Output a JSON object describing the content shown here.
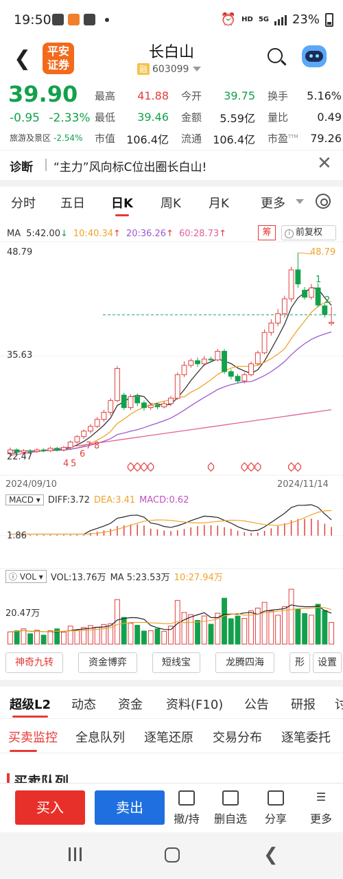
{
  "status_bar": {
    "time": "19:50",
    "hd": "HD",
    "net": "5G",
    "battery": "23%"
  },
  "header": {
    "title": "长白山",
    "rong": "融",
    "code": "603099",
    "logo_line1": "平安",
    "logo_line2": "证券"
  },
  "quote": {
    "price": "39.90",
    "change": "-0.95",
    "change_pct": "-2.33%",
    "sector_label": "旅游及景区",
    "sector_change": "-2.54%",
    "rows": [
      {
        "l1": "最高",
        "v1": "41.88",
        "l2": "今开",
        "v2": "39.75",
        "l3": "换手",
        "v3": "5.16%"
      },
      {
        "l1": "最低",
        "v1": "39.46",
        "l2": "金额",
        "v2": "5.59亿",
        "l3": "量比",
        "v3": "0.49"
      },
      {
        "l1": "市值",
        "v1": "106.4亿",
        "l2": "流通",
        "v2": "106.4亿",
        "l3": "市盈",
        "v3": "79.26",
        "ttm": "TTM"
      }
    ]
  },
  "diagnosis": {
    "label": "诊断",
    "text": "“主力”风向标C位出圈长白山!"
  },
  "kline_tabs": [
    "分时",
    "五日",
    "日K",
    "周K",
    "月K",
    "更多"
  ],
  "ma": {
    "label": "MA",
    "ma5": "5:42.00",
    "ma10": "10:40.34",
    "ma20": "20:36.26",
    "ma60": "60:28.73",
    "chou": "筹",
    "adjust": "前复权"
  },
  "chart_labels": {
    "high": "48.79",
    "mid": "35.63",
    "low": "22.47",
    "max_mark": "48.79",
    "date_start": "2024/09/10",
    "date_end": "2024/11/14",
    "marks": [
      "1",
      "2",
      "7",
      "8",
      "6",
      "4",
      "5"
    ]
  },
  "macd": {
    "name": "MACD",
    "diff": "DIFF:3.72",
    "dea": "DEA:3.41",
    "macd": "MACD:0.62",
    "axis": "1.86"
  },
  "vol": {
    "name": "VOL",
    "vol": "VOL:13.76万",
    "ma5": "MA 5:23.53万",
    "ma10": "10:27.94万",
    "axis": "20.47万"
  },
  "colors": {
    "up": "#e33c3c",
    "down": "#12a14b",
    "ma5": "#333333",
    "ma10": "#f0a32a",
    "ma20": "#9b59d0",
    "ma60": "#e0609a"
  },
  "tools": [
    "神奇九转",
    "资金博弈",
    "短线宝",
    "龙腾四海",
    "形",
    "设置"
  ],
  "lower_tabs": [
    "超级L2",
    "动态",
    "资金",
    "资料(F10)",
    "公告",
    "研报",
    "讨"
  ],
  "sub_tabs": [
    "买卖监控",
    "全息队列",
    "逐笔还原",
    "交易分布",
    "逐笔委托"
  ],
  "section_title": "买卖队列",
  "bottom": {
    "buy": "买入",
    "sell": "卖出",
    "b1": "撤/持",
    "b2": "删自选",
    "b3": "分享",
    "b4": "更多"
  },
  "chart_data": {
    "type": "candlestick",
    "title": "",
    "x_range": [
      "2024/09/10",
      "2024/11/14"
    ],
    "ylim": [
      22.47,
      48.79
    ],
    "y_ticks": [
      22.47,
      35.63,
      48.79
    ],
    "candles": [
      {
        "o": 23.1,
        "c": 23.6,
        "h": 23.9,
        "l": 22.8
      },
      {
        "o": 23.6,
        "c": 23.3,
        "h": 23.8,
        "l": 23.0
      },
      {
        "o": 23.3,
        "c": 23.5,
        "h": 23.7,
        "l": 23.0
      },
      {
        "o": 23.5,
        "c": 23.4,
        "h": 23.7,
        "l": 23.1
      },
      {
        "o": 23.4,
        "c": 23.6,
        "h": 23.8,
        "l": 23.2
      },
      {
        "o": 23.6,
        "c": 23.5,
        "h": 23.8,
        "l": 23.3
      },
      {
        "o": 23.5,
        "c": 23.8,
        "h": 24.0,
        "l": 23.3
      },
      {
        "o": 23.8,
        "c": 23.6,
        "h": 24.0,
        "l": 23.4
      },
      {
        "o": 23.6,
        "c": 23.9,
        "h": 24.1,
        "l": 23.4
      },
      {
        "o": 23.9,
        "c": 24.6,
        "h": 24.8,
        "l": 23.7
      },
      {
        "o": 24.6,
        "c": 25.3,
        "h": 25.5,
        "l": 24.4
      },
      {
        "o": 25.3,
        "c": 26.0,
        "h": 26.2,
        "l": 25.0
      },
      {
        "o": 26.0,
        "c": 26.6,
        "h": 26.9,
        "l": 25.7
      },
      {
        "o": 26.6,
        "c": 27.5,
        "h": 27.8,
        "l": 26.4
      },
      {
        "o": 27.5,
        "c": 28.4,
        "h": 28.7,
        "l": 27.2
      },
      {
        "o": 28.4,
        "c": 29.9,
        "h": 30.2,
        "l": 28.0
      },
      {
        "o": 29.9,
        "c": 34.0,
        "h": 34.3,
        "l": 29.7
      },
      {
        "o": 30.6,
        "c": 29.0,
        "h": 30.9,
        "l": 28.7
      },
      {
        "o": 29.0,
        "c": 30.4,
        "h": 30.7,
        "l": 28.7
      },
      {
        "o": 30.4,
        "c": 29.6,
        "h": 30.8,
        "l": 29.2
      },
      {
        "o": 29.6,
        "c": 29.0,
        "h": 29.9,
        "l": 28.6
      },
      {
        "o": 29.0,
        "c": 29.3,
        "h": 29.6,
        "l": 28.7
      },
      {
        "o": 29.3,
        "c": 29.1,
        "h": 29.6,
        "l": 28.8
      },
      {
        "o": 29.1,
        "c": 29.5,
        "h": 29.8,
        "l": 28.9
      },
      {
        "o": 29.5,
        "c": 30.2,
        "h": 30.5,
        "l": 29.2
      },
      {
        "o": 30.2,
        "c": 33.2,
        "h": 33.5,
        "l": 30.0
      },
      {
        "o": 33.2,
        "c": 34.4,
        "h": 34.9,
        "l": 32.9
      },
      {
        "o": 34.4,
        "c": 35.0,
        "h": 35.3,
        "l": 34.1
      },
      {
        "o": 35.0,
        "c": 34.6,
        "h": 35.4,
        "l": 34.2
      },
      {
        "o": 34.6,
        "c": 35.2,
        "h": 35.6,
        "l": 34.3
      },
      {
        "o": 35.2,
        "c": 35.1,
        "h": 35.5,
        "l": 34.8
      },
      {
        "o": 35.1,
        "c": 36.2,
        "h": 36.5,
        "l": 34.9
      },
      {
        "o": 36.2,
        "c": 33.6,
        "h": 36.5,
        "l": 33.3
      },
      {
        "o": 33.6,
        "c": 33.0,
        "h": 33.9,
        "l": 32.6
      },
      {
        "o": 33.0,
        "c": 32.4,
        "h": 33.3,
        "l": 32.1
      },
      {
        "o": 32.4,
        "c": 33.2,
        "h": 33.5,
        "l": 32.1
      },
      {
        "o": 33.2,
        "c": 34.6,
        "h": 34.9,
        "l": 33.0
      },
      {
        "o": 34.6,
        "c": 36.0,
        "h": 36.3,
        "l": 34.4
      },
      {
        "o": 36.0,
        "c": 38.6,
        "h": 39.0,
        "l": 35.8
      },
      {
        "o": 38.6,
        "c": 39.8,
        "h": 40.3,
        "l": 38.2
      },
      {
        "o": 39.8,
        "c": 41.0,
        "h": 41.6,
        "l": 39.4
      },
      {
        "o": 41.0,
        "c": 42.9,
        "h": 43.3,
        "l": 40.5
      },
      {
        "o": 42.9,
        "c": 46.6,
        "h": 47.0,
        "l": 42.5
      },
      {
        "o": 46.6,
        "c": 44.8,
        "h": 48.79,
        "l": 44.3
      },
      {
        "o": 44.0,
        "c": 43.1,
        "h": 44.4,
        "l": 42.8
      },
      {
        "o": 43.1,
        "c": 44.3,
        "h": 44.8,
        "l": 42.8
      },
      {
        "o": 44.3,
        "c": 42.1,
        "h": 44.9,
        "l": 41.8
      },
      {
        "o": 42.0,
        "c": 40.9,
        "h": 42.3,
        "l": 40.5
      },
      {
        "o": 39.75,
        "c": 39.9,
        "h": 41.88,
        "l": 39.46
      }
    ],
    "ma_last": {
      "ma5": 42.0,
      "ma10": 40.34,
      "ma20": 36.26,
      "ma60": 28.73
    },
    "macd_last": {
      "diff": 3.72,
      "dea": 3.41,
      "macd": 0.62
    },
    "vol_last": {
      "vol": "13.76万",
      "ma5": "23.53万",
      "ma10": "27.94万"
    }
  }
}
